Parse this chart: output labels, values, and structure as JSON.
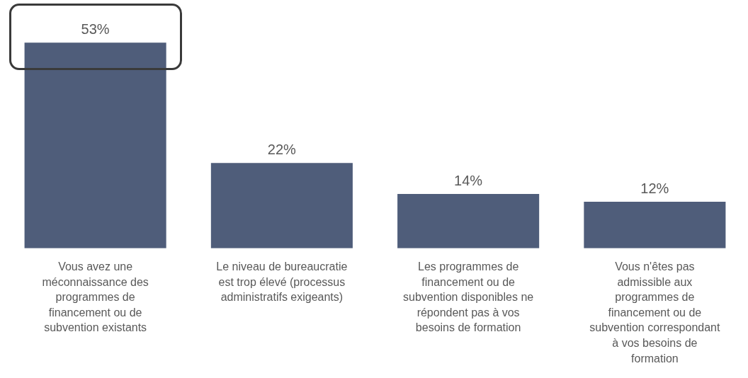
{
  "chart_data": {
    "type": "bar",
    "categories": [
      "Vous avez une méconnaissance des programmes de financement ou de subvention existants",
      "Le niveau de bureaucratie est trop élevé (processus administratifs exigeants)",
      "Les programmes de financement ou de subvention disponibles ne répondent pas à vos besoins de formation",
      "Vous n'êtes pas admissible aux programmes de financement ou de subvention correspondant à vos besoins de formation"
    ],
    "values": [
      53,
      22,
      14,
      12
    ],
    "value_labels": [
      "53%",
      "22%",
      "14%",
      "12%"
    ],
    "color": "#4f5d7a",
    "grid": false,
    "legend": false
  }
}
